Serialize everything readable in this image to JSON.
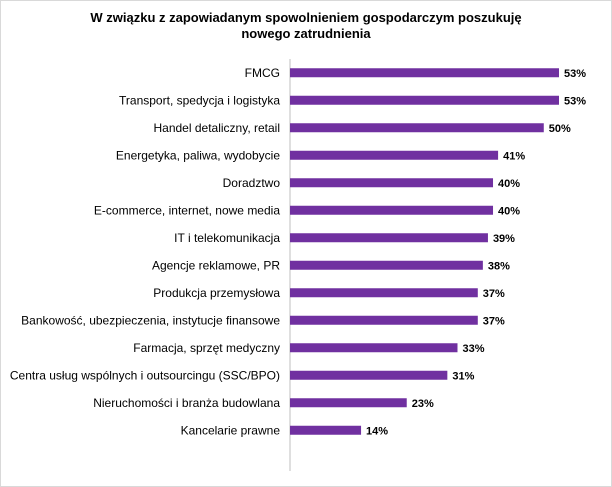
{
  "chart_data": {
    "type": "bar",
    "orientation": "horizontal",
    "title_lines": [
      "W związku z zapowiadanym spowolnieniem gospodarczym poszukuję",
      "nowego zatrudnienia"
    ],
    "categories": [
      "FMCG",
      "Transport, spedycja i logistyka",
      "Handel detaliczny, retail",
      "Energetyka, paliwa, wydobycie",
      "Doradztwo",
      "E-commerce, internet, nowe media",
      "IT i telekomunikacja",
      "Agencje reklamowe, PR",
      "Produkcja przemysłowa",
      "Bankowość, ubezpieczenia, instytucje finansowe",
      "Farmacja, sprzęt medyczny",
      "Centra usług wspólnych i outsourcingu (SSC/BPO)",
      "Nieruchomości i branża budowlana",
      "Kancelarie prawne"
    ],
    "values": [
      53,
      53,
      50,
      41,
      40,
      40,
      39,
      38,
      37,
      37,
      33,
      31,
      23,
      14
    ],
    "value_labels": [
      "53%",
      "53%",
      "50%",
      "41%",
      "40%",
      "40%",
      "39%",
      "38%",
      "37%",
      "37%",
      "33%",
      "31%",
      "23%",
      "14%"
    ],
    "xlim": [
      0,
      60
    ],
    "grid": false,
    "legend": "none",
    "bar_color": "#7030a0"
  }
}
